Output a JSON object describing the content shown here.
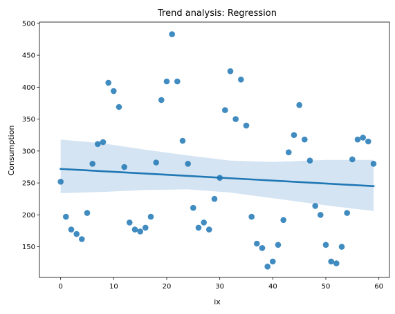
{
  "chart_data": {
    "type": "scatter",
    "title": "Trend analysis: Regression",
    "xlabel": "ix",
    "ylabel": "Consumption",
    "xlim": [
      -4,
      62
    ],
    "ylim": [
      102,
      502
    ],
    "xticks": [
      0,
      10,
      20,
      30,
      40,
      50,
      60
    ],
    "yticks": [
      150,
      200,
      250,
      300,
      350,
      400,
      450,
      500
    ],
    "grid": false,
    "point_color": "#1f77b4",
    "line_color": "#1f77b4",
    "band_color": "#c6dbef",
    "x": [
      0,
      1,
      2,
      3,
      4,
      5,
      6,
      7,
      8,
      9,
      10,
      11,
      12,
      13,
      14,
      15,
      16,
      17,
      18,
      19,
      20,
      21,
      22,
      23,
      24,
      25,
      26,
      27,
      28,
      29,
      30,
      31,
      32,
      33,
      34,
      35,
      36,
      37,
      38,
      39,
      40,
      41,
      42,
      43,
      44,
      45,
      46,
      47,
      48,
      49,
      50,
      51,
      52,
      53,
      54,
      55,
      56,
      57,
      58,
      59
    ],
    "y": [
      252,
      197,
      177,
      170,
      162,
      203,
      280,
      311,
      314,
      407,
      394,
      369,
      275,
      188,
      177,
      174,
      180,
      197,
      282,
      380,
      409,
      483,
      409,
      316,
      280,
      211,
      180,
      188,
      177,
      225,
      258,
      364,
      425,
      350,
      412,
      340,
      197,
      155,
      148,
      119,
      127,
      153,
      192,
      298,
      325,
      372,
      318,
      285,
      214,
      200,
      153,
      127,
      124,
      150,
      203,
      287,
      318,
      321,
      315,
      280
    ],
    "regression": {
      "x_range": [
        0,
        59
      ],
      "y_range": [
        272,
        245
      ],
      "ci_upper": [
        318,
        312,
        302,
        293,
        285,
        283,
        286,
        286
      ],
      "ci_lower": [
        234,
        236,
        239,
        240,
        235,
        226,
        215,
        206
      ],
      "ci_x": [
        0,
        8,
        16,
        24,
        32,
        40,
        50,
        59
      ]
    }
  }
}
